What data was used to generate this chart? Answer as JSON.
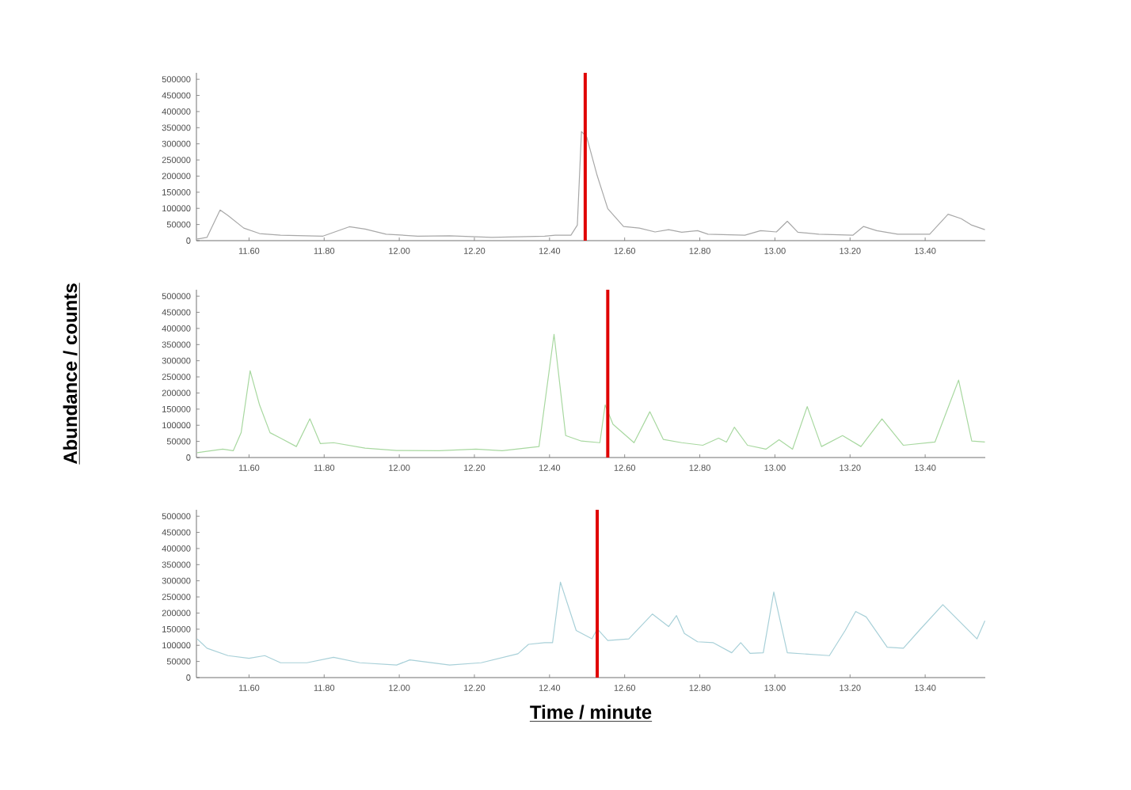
{
  "chart_data": [
    {
      "type": "line",
      "xlim": [
        11.46,
        13.56
      ],
      "ylim": [
        0,
        520000
      ],
      "xticks": [
        {
          "value": 11.6,
          "label": "11.60"
        },
        {
          "value": 11.8,
          "label": "11.80"
        },
        {
          "value": 12.0,
          "label": "12.00"
        },
        {
          "value": 12.2,
          "label": "12.20"
        },
        {
          "value": 12.4,
          "label": "12.40"
        },
        {
          "value": 12.6,
          "label": "12.60"
        },
        {
          "value": 12.8,
          "label": "12.80"
        },
        {
          "value": 13.0,
          "label": "13.00"
        },
        {
          "value": 13.2,
          "label": "13.20"
        },
        {
          "value": 13.4,
          "label": "13.40"
        }
      ],
      "yticks": [
        0,
        50000,
        100000,
        150000,
        200000,
        250000,
        300000,
        350000,
        400000,
        450000,
        500000
      ],
      "ref_lines": [
        {
          "axis": "x",
          "value": 12.495,
          "color": "#e00000"
        }
      ],
      "series": [
        {
          "color": "#a8a8a8",
          "x": [
            11.462,
            11.488,
            11.523,
            11.544,
            11.586,
            11.628,
            11.684,
            11.797,
            11.867,
            11.909,
            11.965,
            12.049,
            12.134,
            12.246,
            12.387,
            12.415,
            12.457,
            12.474,
            12.485,
            12.499,
            12.527,
            12.555,
            12.597,
            12.639,
            12.681,
            12.717,
            12.752,
            12.794,
            12.822,
            12.92,
            12.962,
            13.004,
            13.033,
            13.061,
            13.117,
            13.208,
            13.236,
            13.271,
            13.327,
            13.412,
            13.461,
            13.496,
            13.524,
            13.559
          ],
          "values": [
            5000,
            10000,
            95000,
            78000,
            39000,
            22000,
            17000,
            14000,
            43000,
            36000,
            20000,
            14000,
            15000,
            10000,
            14000,
            17000,
            17000,
            48000,
            338000,
            321000,
            201000,
            99000,
            44000,
            39000,
            27000,
            34000,
            26000,
            31000,
            20000,
            17000,
            31000,
            27000,
            60000,
            26000,
            20000,
            17000,
            44000,
            31000,
            20000,
            20000,
            82000,
            68000,
            48000,
            34000
          ]
        }
      ]
    },
    {
      "type": "line",
      "ylabel": "Abundance / counts",
      "xlim": [
        11.46,
        13.56
      ],
      "ylim": [
        0,
        520000
      ],
      "xticks": [
        {
          "value": 11.6,
          "label": "11.60"
        },
        {
          "value": 11.8,
          "label": "11.80"
        },
        {
          "value": 12.0,
          "label": "12.00"
        },
        {
          "value": 12.2,
          "label": "12.20"
        },
        {
          "value": 12.4,
          "label": "12.40"
        },
        {
          "value": 12.6,
          "label": "12.60"
        },
        {
          "value": 12.8,
          "label": "12.80"
        },
        {
          "value": 13.0,
          "label": "13.00"
        },
        {
          "value": 13.2,
          "label": "13.20"
        },
        {
          "value": 13.4,
          "label": "13.40"
        }
      ],
      "yticks": [
        0,
        50000,
        100000,
        150000,
        200000,
        250000,
        300000,
        350000,
        400000,
        450000,
        500000
      ],
      "ref_lines": [
        {
          "axis": "x",
          "value": 12.555,
          "color": "#e00000"
        }
      ],
      "series": [
        {
          "color": "#a8d8a0",
          "x": [
            11.462,
            11.53,
            11.558,
            11.579,
            11.603,
            11.628,
            11.656,
            11.684,
            11.726,
            11.762,
            11.79,
            11.825,
            11.909,
            11.993,
            12.106,
            12.204,
            12.274,
            12.372,
            12.412,
            12.443,
            12.485,
            12.534,
            12.548,
            12.569,
            12.625,
            12.667,
            12.703,
            12.752,
            12.808,
            12.85,
            12.871,
            12.892,
            12.927,
            12.976,
            13.011,
            13.047,
            13.086,
            13.124,
            13.18,
            13.229,
            13.285,
            13.342,
            13.426,
            13.489,
            13.524,
            13.559
          ],
          "values": [
            15000,
            26000,
            21000,
            77000,
            269000,
            163000,
            77000,
            60000,
            34000,
            120000,
            43000,
            46000,
            29000,
            22000,
            21000,
            26000,
            21000,
            34000,
            382000,
            68000,
            51000,
            46000,
            163000,
            103000,
            46000,
            142000,
            56000,
            46000,
            38000,
            60000,
            48000,
            94000,
            38000,
            26000,
            55000,
            26000,
            158000,
            34000,
            68000,
            34000,
            120000,
            38000,
            48000,
            240000,
            51000,
            48000
          ]
        }
      ]
    },
    {
      "type": "line",
      "xlabel": "Time / minute",
      "xlim": [
        11.46,
        13.56
      ],
      "ylim": [
        0,
        520000
      ],
      "xticks": [
        {
          "value": 11.6,
          "label": "11.60"
        },
        {
          "value": 11.8,
          "label": "11.80"
        },
        {
          "value": 12.0,
          "label": "12.00"
        },
        {
          "value": 12.2,
          "label": "12.20"
        },
        {
          "value": 12.4,
          "label": "12.40"
        },
        {
          "value": 12.6,
          "label": "12.60"
        },
        {
          "value": 12.8,
          "label": "12.80"
        },
        {
          "value": 13.0,
          "label": "13.00"
        },
        {
          "value": 13.2,
          "label": "13.20"
        },
        {
          "value": 13.4,
          "label": "13.40"
        }
      ],
      "yticks": [
        0,
        50000,
        100000,
        150000,
        200000,
        250000,
        300000,
        350000,
        400000,
        450000,
        500000
      ],
      "ref_lines": [
        {
          "axis": "x",
          "value": 12.527,
          "color": "#e00000"
        }
      ],
      "series": [
        {
          "color": "#a8d0d8",
          "x": [
            11.462,
            11.488,
            11.544,
            11.6,
            11.642,
            11.684,
            11.754,
            11.825,
            11.895,
            11.993,
            12.028,
            12.134,
            12.218,
            12.316,
            12.344,
            12.387,
            12.408,
            12.429,
            12.471,
            12.513,
            12.527,
            12.555,
            12.611,
            12.674,
            12.717,
            12.738,
            12.759,
            12.794,
            12.836,
            12.885,
            12.909,
            12.934,
            12.969,
            12.997,
            13.033,
            13.145,
            13.187,
            13.215,
            13.243,
            13.299,
            13.342,
            13.384,
            13.447,
            13.538,
            13.559
          ],
          "values": [
            120000,
            91000,
            68000,
            60000,
            68000,
            46000,
            46000,
            63000,
            46000,
            39000,
            55000,
            39000,
            46000,
            74000,
            103000,
            108000,
            108000,
            296000,
            146000,
            120000,
            151000,
            115000,
            120000,
            197000,
            158000,
            192000,
            137000,
            111000,
            108000,
            77000,
            108000,
            75000,
            77000,
            265000,
            77000,
            68000,
            146000,
            205000,
            188000,
            94000,
            91000,
            146000,
            226000,
            120000,
            176000
          ]
        }
      ]
    }
  ]
}
